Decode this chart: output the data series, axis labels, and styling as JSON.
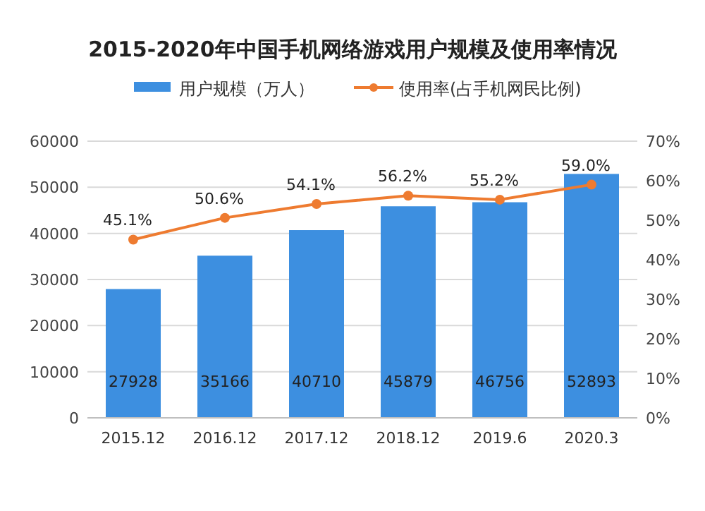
{
  "chart_data": {
    "type": "bar",
    "title": "2015-2020年中国手机网络游戏用户规模及使用率情况",
    "categories": [
      "2015.12",
      "2016.12",
      "2017.12",
      "2018.12",
      "2019.6",
      "2020.3"
    ],
    "series": [
      {
        "name": "用户规模（万人）",
        "color": "#3d8fe0",
        "values": [
          27928,
          35166,
          40710,
          45879,
          46756,
          52893
        ],
        "value_labels": [
          "27928",
          "35166",
          "40710",
          "45879",
          "46756",
          "52893"
        ]
      },
      {
        "name": "使用率(占手机网民比例)",
        "type": "line",
        "axis": "y2",
        "color": "#ee7b30",
        "marker": "circle",
        "line_style": "solid",
        "values": [
          45.1,
          50.6,
          54.1,
          56.2,
          55.2,
          59.0
        ],
        "value_labels": [
          "45.1%",
          "50.6%",
          "54.1%",
          "56.2%",
          "55.2%",
          "59.0%"
        ]
      }
    ],
    "ylim": [
      0,
      60000
    ],
    "yticks": [
      0,
      10000,
      20000,
      30000,
      40000,
      50000,
      60000
    ],
    "y2lim": [
      0,
      70
    ],
    "y2ticks": [
      {
        "value": 0,
        "label": "0%"
      },
      {
        "value": 10,
        "label": "10%"
      },
      {
        "value": 20,
        "label": "20%"
      },
      {
        "value": 30,
        "label": "30%"
      },
      {
        "value": 40,
        "label": "40%"
      },
      {
        "value": 50,
        "label": "50%"
      },
      {
        "value": 60,
        "label": "60%"
      },
      {
        "value": 70,
        "label": "70%"
      }
    ],
    "grid": "y",
    "legend": "top"
  }
}
